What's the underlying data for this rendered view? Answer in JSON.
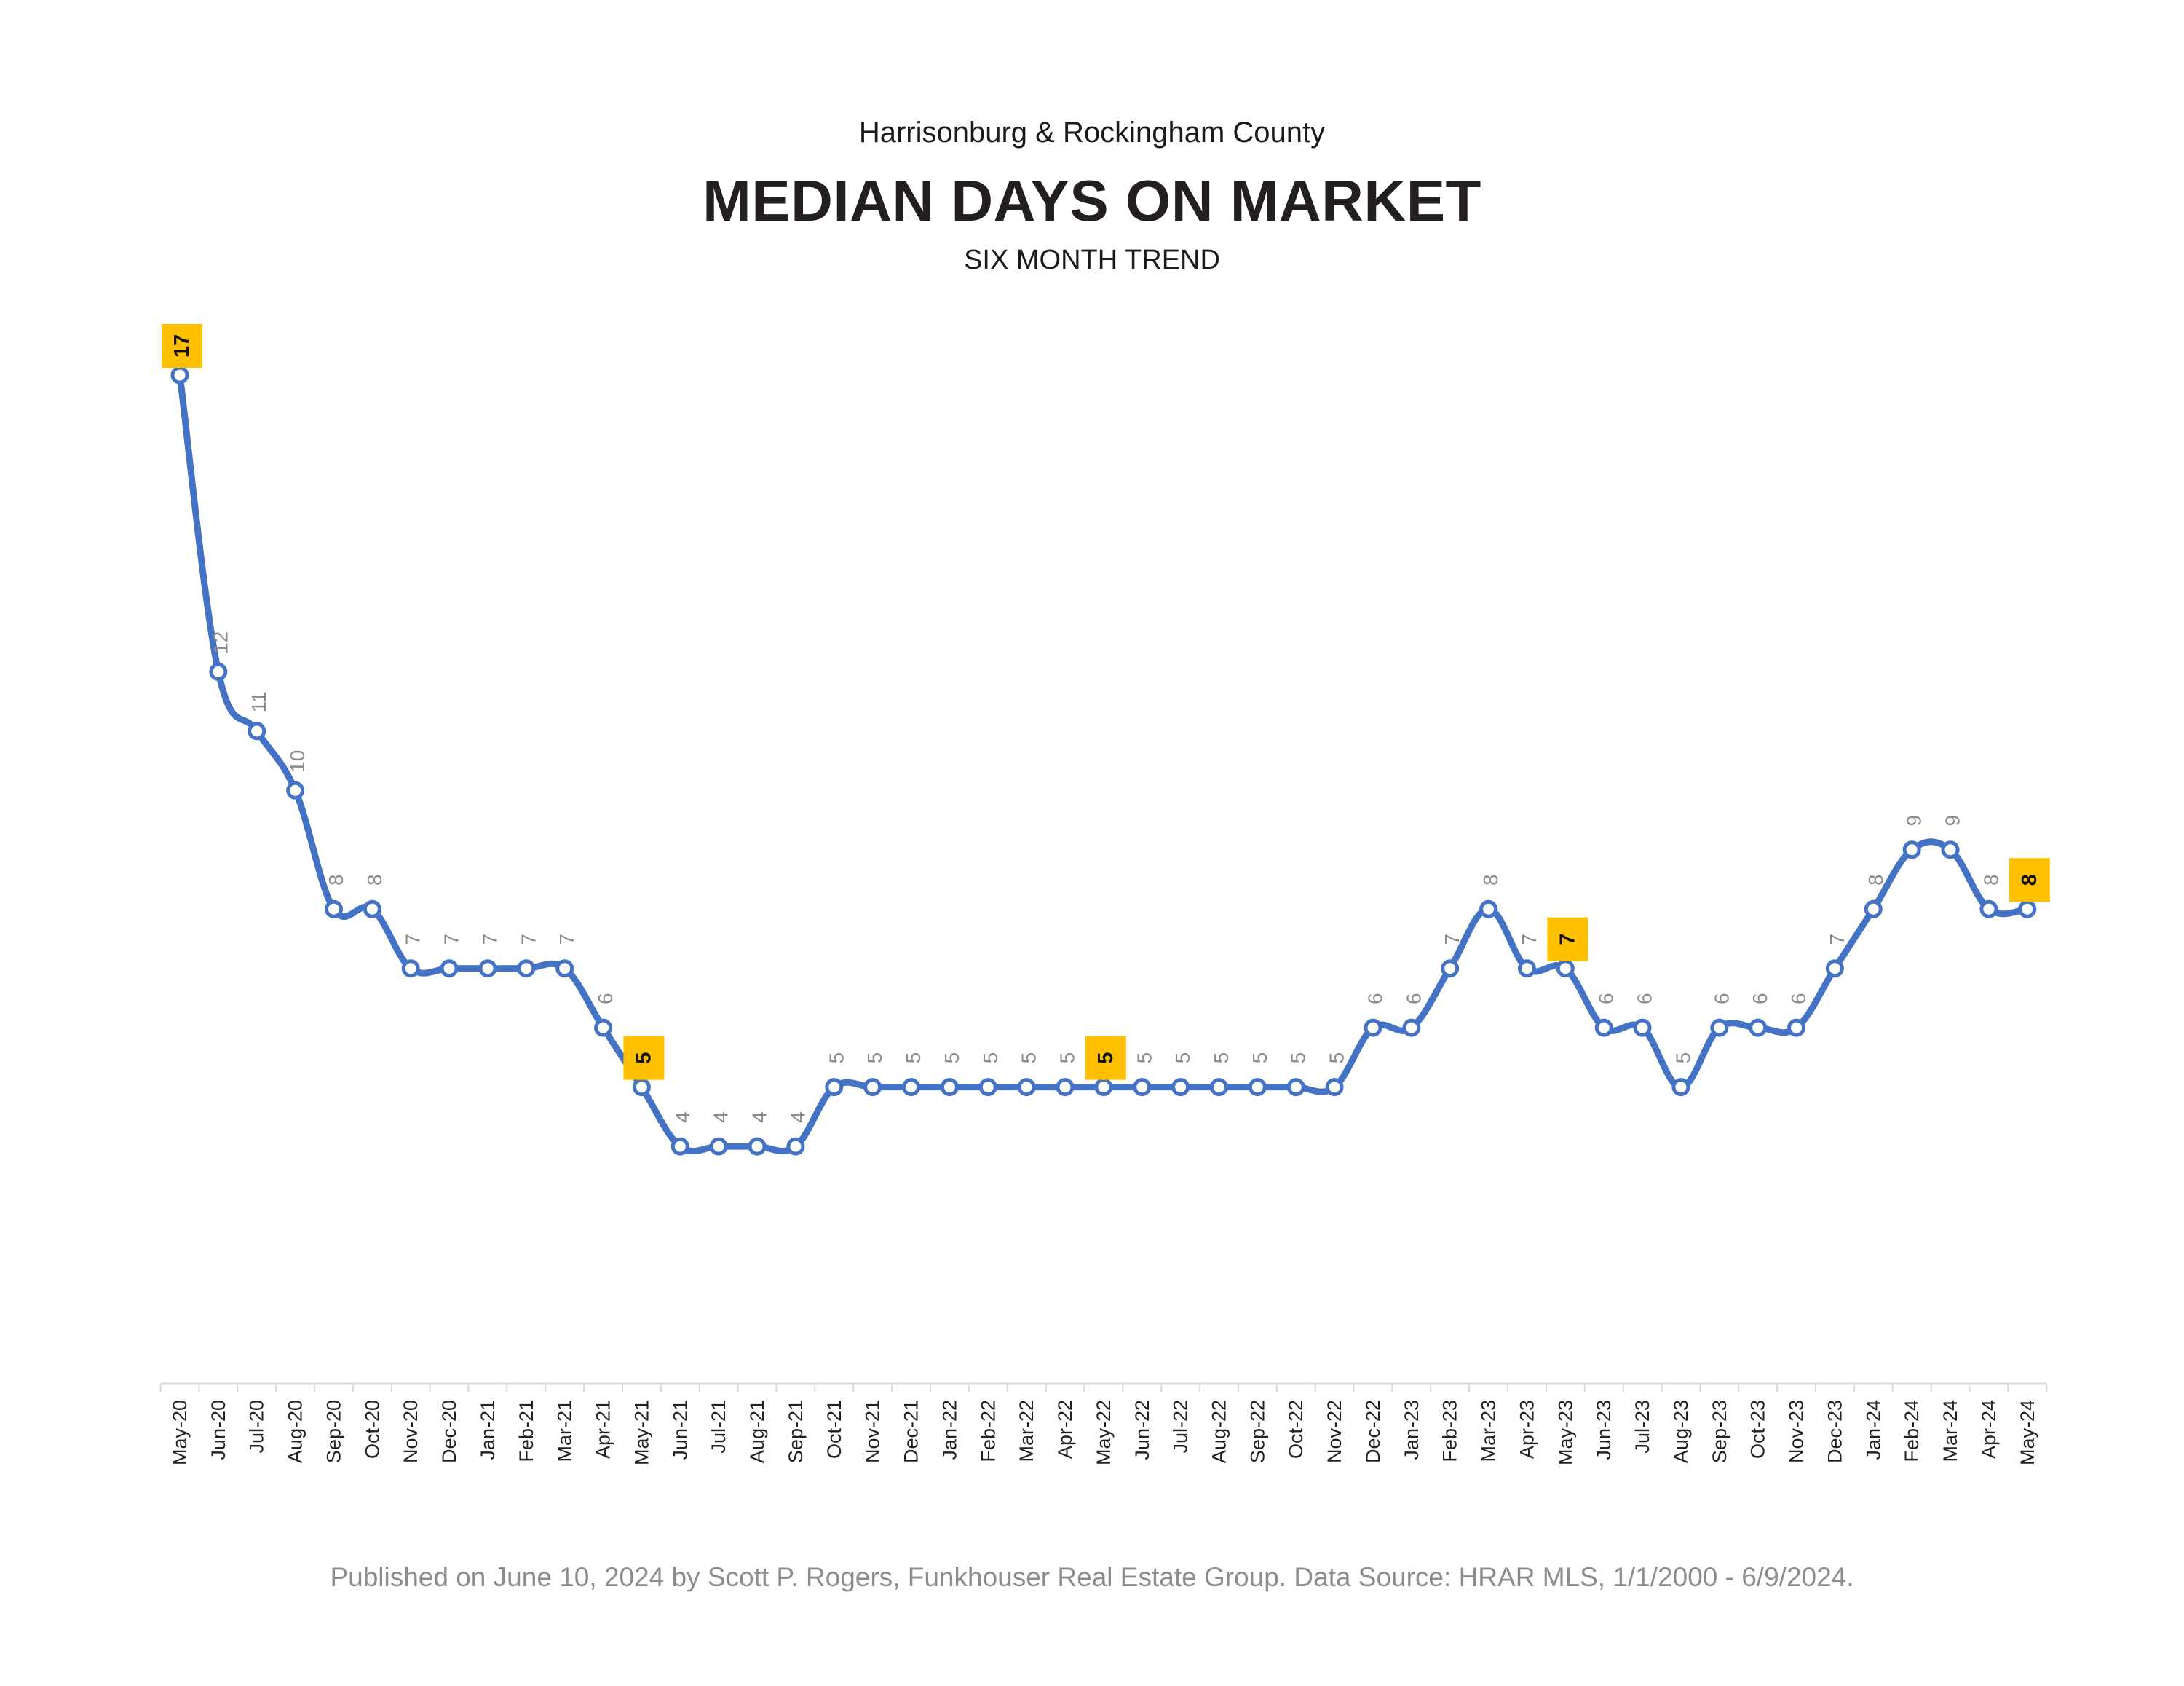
{
  "header": {
    "supertitle": "Harrisonburg & Rockingham County",
    "title": "MEDIAN DAYS ON MARKET",
    "subtitle": "SIX MONTH TREND"
  },
  "footer": {
    "text": "Published on June 10, 2024 by Scott P. Rogers, Funkhouser Real Estate Group. Data Source: HRAR MLS, 1/1/2000 - 6/9/2024."
  },
  "colors": {
    "line": "#4472c4",
    "highlight_label_bg": "#ffc000",
    "data_label": "#8c8c8c",
    "axis": "#d9d9d9"
  },
  "chart_data": {
    "type": "line",
    "title": "MEDIAN DAYS ON MARKET",
    "subtitle": "SIX MONTH TREND",
    "xlabel": "",
    "ylabel": "",
    "ylim": [
      0,
      17
    ],
    "grid": false,
    "legend": "none",
    "categories": [
      "May-20",
      "Jun-20",
      "Jul-20",
      "Aug-20",
      "Sep-20",
      "Oct-20",
      "Nov-20",
      "Dec-20",
      "Jan-21",
      "Feb-21",
      "Mar-21",
      "Apr-21",
      "May-21",
      "Jun-21",
      "Jul-21",
      "Aug-21",
      "Sep-21",
      "Oct-21",
      "Nov-21",
      "Dec-21",
      "Jan-22",
      "Feb-22",
      "Mar-22",
      "Apr-22",
      "May-22",
      "Jun-22",
      "Jul-22",
      "Aug-22",
      "Sep-22",
      "Oct-22",
      "Nov-22",
      "Dec-22",
      "Jan-23",
      "Feb-23",
      "Mar-23",
      "Apr-23",
      "May-23",
      "Jun-23",
      "Jul-23",
      "Aug-23",
      "Sep-23",
      "Oct-23",
      "Nov-23",
      "Dec-23",
      "Jan-24",
      "Feb-24",
      "Mar-24",
      "Apr-24",
      "May-24"
    ],
    "series": [
      {
        "values": [
          17,
          12,
          11,
          10,
          8,
          8,
          7,
          7,
          7,
          7,
          7,
          6,
          5,
          4,
          4,
          4,
          4,
          5,
          5,
          5,
          5,
          5,
          5,
          5,
          5,
          5,
          5,
          5,
          5,
          5,
          5,
          6,
          6,
          7,
          8,
          7,
          7,
          6,
          6,
          5,
          6,
          6,
          6,
          7,
          8,
          9,
          9,
          8,
          8
        ],
        "highlighted_labels": [
          "May-20",
          "May-21",
          "May-22",
          "May-23",
          "May-24"
        ]
      }
    ]
  }
}
